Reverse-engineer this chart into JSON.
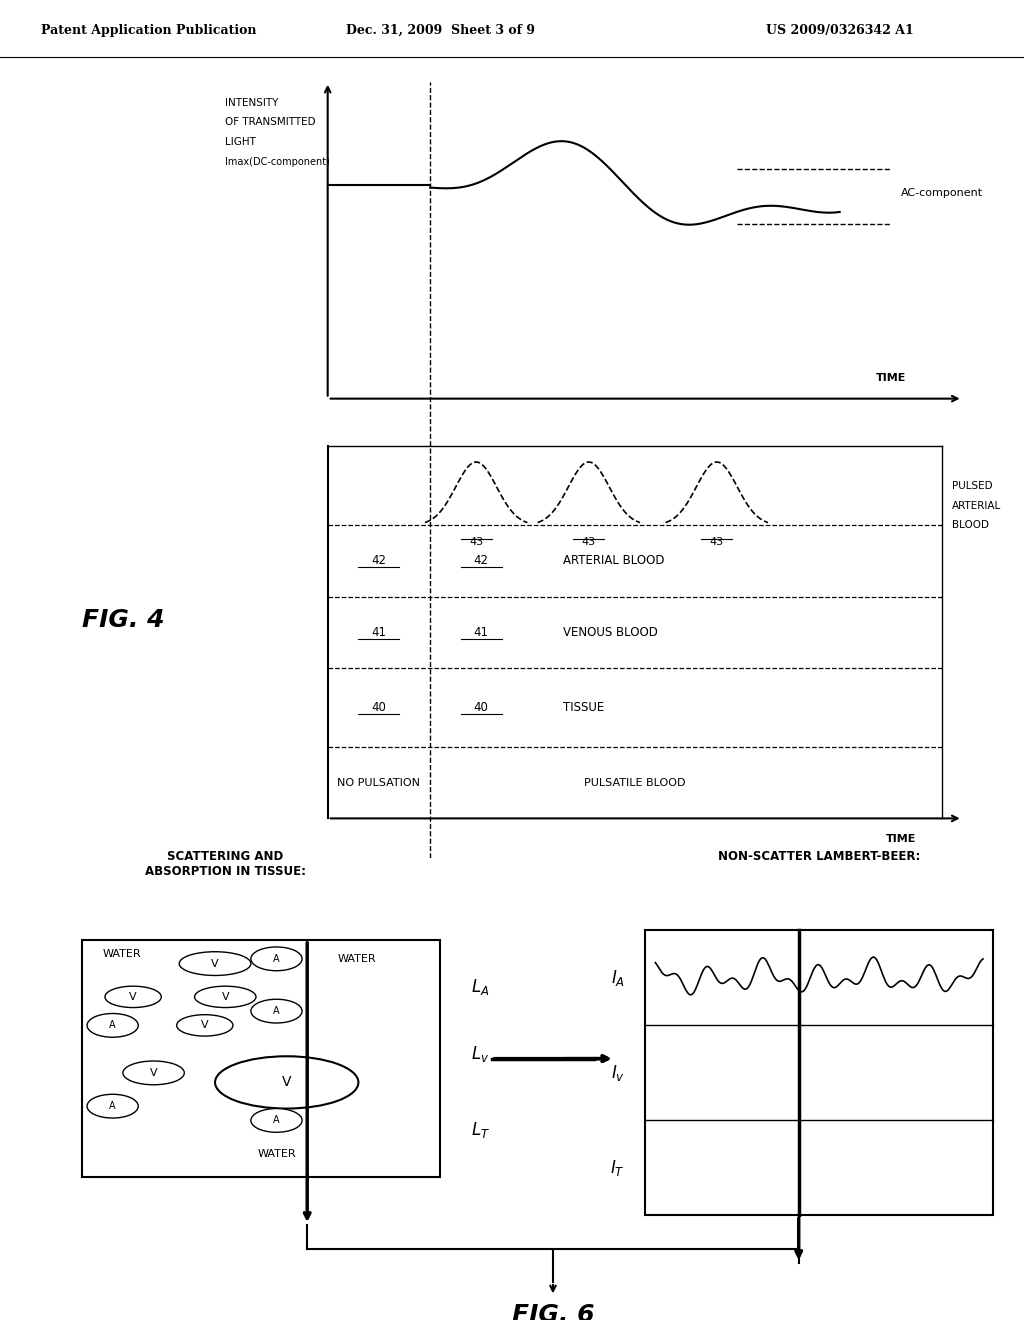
{
  "header_left": "Patent Application Publication",
  "header_mid": "Dec. 31, 2009  Sheet 3 of 9",
  "header_right": "US 2009/0326342 A1",
  "fig4_label": "FIG. 4",
  "fig6_label": "FIG. 6",
  "bg_color": "#ffffff",
  "ac_label": "AC-component",
  "pulsed_label": "PULSED\nARTERIAL\nBLOOD",
  "arterial_label": "ARTERIAL BLOOD",
  "venous_label": "VENOUS BLOOD",
  "tissue_label": "TISSUE",
  "no_pulsation": "NO PULSATION",
  "pulsatile": "PULSATILE BLOOD",
  "scatter_title": "SCATTERING AND\nABSORPTION IN TISSUE:",
  "lambert_title": "NON-SCATTER LAMBERT-BEER:"
}
